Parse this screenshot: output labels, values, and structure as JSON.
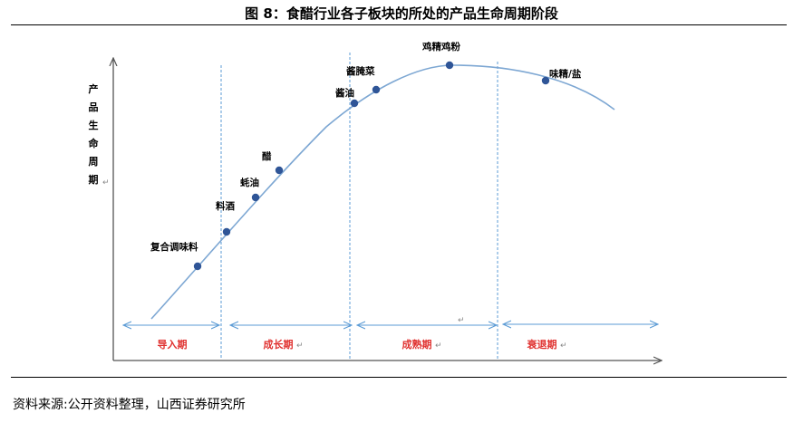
{
  "title": "图 8：食醋行业各子板块的所处的产品生命周期阶段",
  "source": "资料来源:公开资料整理，山西证券研究所",
  "y_axis_label": [
    "产",
    "品",
    "生",
    "命",
    "周",
    "期"
  ],
  "stages": [
    {
      "label": "导入期"
    },
    {
      "label": "成长期"
    },
    {
      "label": "成熟期"
    },
    {
      "label": "衰退期"
    }
  ],
  "products": [
    {
      "label": "复合调味料"
    },
    {
      "label": "料酒"
    },
    {
      "label": "蚝油"
    },
    {
      "label": "醋"
    },
    {
      "label": "酱油"
    },
    {
      "label": "酱腌菜"
    },
    {
      "label": "鸡精鸡粉"
    },
    {
      "label": "味精/盐"
    }
  ],
  "colors": {
    "curve": "#7da7d3",
    "dot": "#2f5597",
    "stage_text": "#e0312f",
    "arrow": "#5b9bd5",
    "axis": "#555555"
  }
}
